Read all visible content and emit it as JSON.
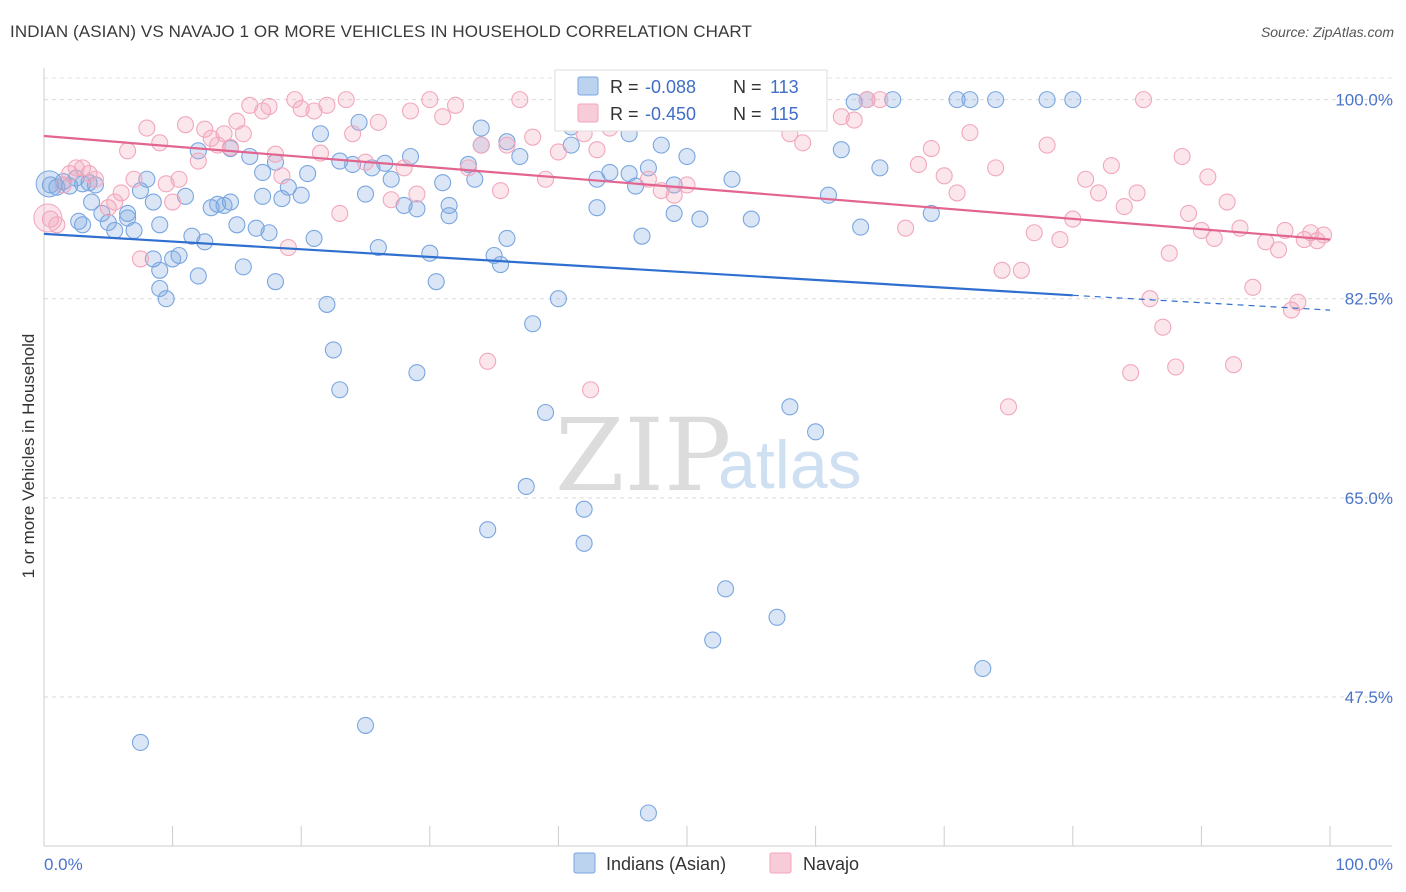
{
  "header": {
    "title": "INDIAN (ASIAN) VS NAVAJO 1 OR MORE VEHICLES IN HOUSEHOLD CORRELATION CHART",
    "source": "Source: ZipAtlas.com"
  },
  "watermark": {
    "zip": "ZIP",
    "atlas": "atlas"
  },
  "legend": {
    "r_label": "R =",
    "n_label": "N =",
    "rows": [
      {
        "r": "-0.088",
        "n": "113",
        "color": "#7aa6e0"
      },
      {
        "r": "-0.450",
        "n": "115",
        "color": "#f2a7bc"
      }
    ]
  },
  "bottom_legend": [
    {
      "label": "Indians (Asian)",
      "color": "#7aa6e0"
    },
    {
      "label": "Navajo",
      "color": "#f2a7bc"
    }
  ],
  "chart_data": {
    "type": "scatter",
    "title": "INDIAN (ASIAN) VS NAVAJO 1 OR MORE VEHICLES IN HOUSEHOLD CORRELATION CHART",
    "xlabel": "",
    "ylabel": "1 or more Vehicles in Household",
    "xlim": [
      0,
      100
    ],
    "ylim": [
      34.4,
      101.9
    ],
    "x_tick_labels": [
      "0.0%",
      "100.0%"
    ],
    "y_ticks": [
      100.0,
      82.5,
      65.0,
      47.5
    ],
    "y_tick_labels": [
      "100.0%",
      "82.5%",
      "65.0%",
      "47.5%"
    ],
    "grid": true,
    "legend_position": "top-center",
    "series": [
      {
        "name": "Indians (Asian)",
        "color": "#7aa6e0",
        "line_color": "#2f6fcf",
        "trend": {
          "x0": 0,
          "y0": 88.2,
          "x1": 80,
          "y1": 82.8,
          "dash_to_x": 100,
          "dash_to_y": 81.5
        },
        "points": [
          [
            0.5,
            92.5
          ],
          [
            1,
            92.3
          ],
          [
            1.5,
            92.8
          ],
          [
            2,
            92.4
          ],
          [
            2.5,
            93.1
          ],
          [
            3,
            92.6
          ],
          [
            3.5,
            92.7
          ],
          [
            4,
            92.5
          ],
          [
            3,
            89
          ],
          [
            2.7,
            89.3
          ],
          [
            3.7,
            91
          ],
          [
            4.5,
            90
          ],
          [
            5,
            89.2
          ],
          [
            5.5,
            88.5
          ],
          [
            6.5,
            90
          ],
          [
            6.5,
            89.6
          ],
          [
            7,
            88.5
          ],
          [
            7.5,
            92
          ],
          [
            8,
            93
          ],
          [
            8.5,
            91
          ],
          [
            9,
            89
          ],
          [
            8.5,
            86
          ],
          [
            9,
            83.4
          ],
          [
            9.5,
            82.5
          ],
          [
            9,
            85
          ],
          [
            10,
            86
          ],
          [
            10.5,
            86.3
          ],
          [
            11,
            91.5
          ],
          [
            11.5,
            88
          ],
          [
            12,
            95.5
          ],
          [
            12,
            84.5
          ],
          [
            12.5,
            87.5
          ],
          [
            13,
            90.5
          ],
          [
            13.5,
            90.8
          ],
          [
            14,
            90.7
          ],
          [
            14.5,
            95.7
          ],
          [
            14.5,
            91
          ],
          [
            15,
            89
          ],
          [
            15.5,
            85.3
          ],
          [
            16,
            95
          ],
          [
            16.5,
            88.7
          ],
          [
            17,
            93.6
          ],
          [
            17,
            91.5
          ],
          [
            17.5,
            88.3
          ],
          [
            18,
            84
          ],
          [
            18,
            94.5
          ],
          [
            18.5,
            91.3
          ],
          [
            19,
            92.3
          ],
          [
            20,
            91.6
          ],
          [
            20.5,
            93.5
          ],
          [
            21,
            87.8
          ],
          [
            21.5,
            97
          ],
          [
            22,
            82
          ],
          [
            22.5,
            78
          ],
          [
            23,
            74.5
          ],
          [
            23,
            94.6
          ],
          [
            24,
            94.3
          ],
          [
            24.5,
            98
          ],
          [
            25,
            91.7
          ],
          [
            25.5,
            94
          ],
          [
            26,
            87
          ],
          [
            26.5,
            94.4
          ],
          [
            27,
            93
          ],
          [
            28,
            90.7
          ],
          [
            28.5,
            95
          ],
          [
            29,
            90.4
          ],
          [
            29,
            76
          ],
          [
            30,
            86.5
          ],
          [
            30.5,
            84
          ],
          [
            31,
            92.7
          ],
          [
            31.5,
            89.8
          ],
          [
            31.5,
            90.7
          ],
          [
            33,
            94.3
          ],
          [
            33.5,
            93
          ],
          [
            34,
            96
          ],
          [
            34,
            97.5
          ],
          [
            35,
            86.3
          ],
          [
            35.5,
            85.5
          ],
          [
            36,
            96.3
          ],
          [
            36,
            87.8
          ],
          [
            37,
            95
          ],
          [
            37.5,
            66
          ],
          [
            38,
            80.3
          ],
          [
            39,
            72.5
          ],
          [
            40,
            82.5
          ],
          [
            41,
            96
          ],
          [
            41,
            97.6
          ],
          [
            42,
            61
          ],
          [
            42,
            64
          ],
          [
            43,
            90.5
          ],
          [
            43,
            93
          ],
          [
            44,
            93.6
          ],
          [
            45.5,
            97
          ],
          [
            45.5,
            93.5
          ],
          [
            46,
            92.4
          ],
          [
            46.5,
            88
          ],
          [
            47,
            94
          ],
          [
            48,
            96
          ],
          [
            49,
            90
          ],
          [
            49,
            92.5
          ],
          [
            50,
            95
          ],
          [
            51,
            100
          ],
          [
            51,
            89.5
          ],
          [
            52,
            52.5
          ],
          [
            53,
            57
          ],
          [
            53.5,
            93
          ],
          [
            55,
            89.5
          ],
          [
            57,
            54.5
          ],
          [
            58,
            73
          ],
          [
            58,
            100
          ],
          [
            60,
            70.8
          ],
          [
            61,
            91.6
          ],
          [
            62,
            95.6
          ],
          [
            63,
            99.8
          ],
          [
            63.5,
            88.8
          ],
          [
            64,
            100
          ],
          [
            65,
            94
          ],
          [
            66,
            100
          ],
          [
            69,
            90
          ],
          [
            71,
            100
          ],
          [
            72,
            100
          ],
          [
            73,
            50
          ],
          [
            74,
            100
          ],
          [
            78,
            100
          ],
          [
            80,
            100
          ],
          [
            50,
            100.2
          ],
          [
            47,
            37.3
          ],
          [
            7.5,
            43.5
          ],
          [
            25,
            45
          ],
          [
            34.5,
            62.2
          ]
        ]
      },
      {
        "name": "Navajo",
        "color": "#f2a7bc",
        "line_color": "#e2658f",
        "trend": {
          "x0": 0,
          "y0": 96.8,
          "x1": 100,
          "y1": 87.7
        },
        "points": [
          [
            0.5,
            89.5
          ],
          [
            1,
            89
          ],
          [
            1.5,
            92.5
          ],
          [
            2,
            93.5
          ],
          [
            2.5,
            94
          ],
          [
            3,
            94
          ],
          [
            3.5,
            93.5
          ],
          [
            4,
            93
          ],
          [
            5,
            90.5
          ],
          [
            5.5,
            91
          ],
          [
            6,
            91.8
          ],
          [
            6.5,
            95.5
          ],
          [
            7,
            93
          ],
          [
            7.5,
            86
          ],
          [
            8,
            97.5
          ],
          [
            9,
            96.2
          ],
          [
            9.5,
            92.6
          ],
          [
            10,
            91
          ],
          [
            10.5,
            93
          ],
          [
            11,
            97.8
          ],
          [
            12,
            94.6
          ],
          [
            12.5,
            97.4
          ],
          [
            13,
            96.6
          ],
          [
            13.5,
            96
          ],
          [
            14,
            97
          ],
          [
            14.5,
            95.8
          ],
          [
            15,
            98.1
          ],
          [
            15.5,
            97
          ],
          [
            16,
            99.5
          ],
          [
            17,
            99
          ],
          [
            17.5,
            99.4
          ],
          [
            18,
            95.2
          ],
          [
            18.5,
            93.3
          ],
          [
            19,
            87
          ],
          [
            19.5,
            100
          ],
          [
            20,
            99.2
          ],
          [
            21,
            99
          ],
          [
            21.5,
            95.3
          ],
          [
            22,
            99.5
          ],
          [
            23,
            90
          ],
          [
            23.5,
            100
          ],
          [
            24,
            97
          ],
          [
            25,
            94.5
          ],
          [
            26,
            98
          ],
          [
            27,
            91.2
          ],
          [
            28,
            94
          ],
          [
            28.5,
            99
          ],
          [
            29,
            91.7
          ],
          [
            30,
            100
          ],
          [
            31,
            98.5
          ],
          [
            32,
            99.5
          ],
          [
            33,
            94
          ],
          [
            34,
            96
          ],
          [
            34.5,
            77
          ],
          [
            35.5,
            92
          ],
          [
            36,
            96
          ],
          [
            37,
            100
          ],
          [
            38,
            96.7
          ],
          [
            39,
            93
          ],
          [
            40,
            95.4
          ],
          [
            41,
            100
          ],
          [
            42,
            97
          ],
          [
            42.5,
            74.5
          ],
          [
            43,
            95.6
          ],
          [
            44,
            97.5
          ],
          [
            45,
            100
          ],
          [
            46,
            98
          ],
          [
            47,
            93
          ],
          [
            48,
            92
          ],
          [
            49,
            91.6
          ],
          [
            50,
            92.5
          ],
          [
            51,
            100
          ],
          [
            52,
            100
          ],
          [
            53,
            100
          ],
          [
            54,
            99
          ],
          [
            55,
            100
          ],
          [
            56,
            100
          ],
          [
            57,
            100
          ],
          [
            58,
            97
          ],
          [
            59,
            96.2
          ],
          [
            60,
            100
          ],
          [
            62,
            98.5
          ],
          [
            63,
            98.2
          ],
          [
            64,
            100
          ],
          [
            65,
            100
          ],
          [
            67,
            88.7
          ],
          [
            68,
            94.3
          ],
          [
            69,
            95.7
          ],
          [
            70,
            93.3
          ],
          [
            71,
            91.8
          ],
          [
            72,
            97.1
          ],
          [
            74,
            94
          ],
          [
            74.5,
            85
          ],
          [
            76,
            85
          ],
          [
            77,
            88.3
          ],
          [
            78,
            96
          ],
          [
            79,
            87.7
          ],
          [
            80,
            89.5
          ],
          [
            81,
            93
          ],
          [
            82,
            91.8
          ],
          [
            83,
            94.2
          ],
          [
            84,
            90.6
          ],
          [
            84.5,
            76
          ],
          [
            85,
            91.8
          ],
          [
            85.5,
            100
          ],
          [
            86,
            82.5
          ],
          [
            87,
            80
          ],
          [
            87.5,
            86.5
          ],
          [
            88,
            76.5
          ],
          [
            88.5,
            95
          ],
          [
            89,
            90
          ],
          [
            90,
            88.5
          ],
          [
            90.5,
            93.2
          ],
          [
            91,
            87.8
          ],
          [
            92,
            91
          ],
          [
            92.5,
            76.7
          ],
          [
            93,
            88.7
          ],
          [
            94,
            83.5
          ],
          [
            95,
            87.5
          ],
          [
            96,
            86.8
          ],
          [
            96.5,
            88.5
          ],
          [
            97,
            81.5
          ],
          [
            97.5,
            82.2
          ],
          [
            98,
            87.7
          ],
          [
            98.5,
            88.3
          ],
          [
            99,
            87.6
          ],
          [
            99.5,
            88.1
          ],
          [
            75,
            73
          ]
        ]
      }
    ]
  }
}
